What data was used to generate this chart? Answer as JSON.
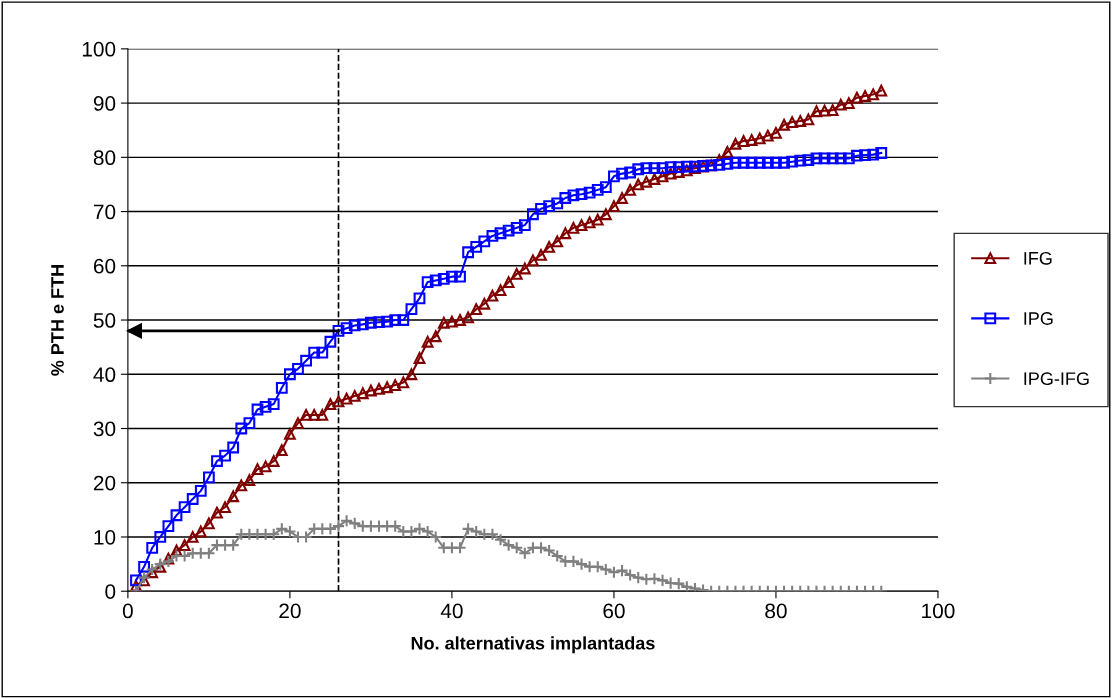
{
  "chart_data": {
    "type": "line",
    "xlabel": "No. alternativas implantadas",
    "ylabel": "% PTH e FTH",
    "x": [
      1,
      2,
      3,
      4,
      5,
      6,
      7,
      8,
      9,
      10,
      11,
      12,
      13,
      14,
      15,
      16,
      17,
      18,
      19,
      20,
      21,
      22,
      23,
      24,
      25,
      26,
      27,
      28,
      29,
      30,
      31,
      32,
      33,
      34,
      35,
      36,
      37,
      38,
      39,
      40,
      41,
      42,
      43,
      44,
      45,
      46,
      47,
      48,
      49,
      50,
      51,
      52,
      53,
      54,
      55,
      56,
      57,
      58,
      59,
      60,
      61,
      62,
      63,
      64,
      65,
      66,
      67,
      68,
      69,
      70,
      71,
      72,
      73,
      74,
      75,
      76,
      77,
      78,
      79,
      80,
      81,
      82,
      83,
      84,
      85,
      86,
      87,
      88,
      89,
      90,
      91,
      92,
      93
    ],
    "series": [
      {
        "name": "IFG",
        "color": "#800000",
        "marker": "triangle",
        "values": [
          1,
          2,
          3.5,
          4.5,
          6,
          7.5,
          8.5,
          10,
          11,
          12.5,
          14.5,
          15.5,
          17.5,
          19.5,
          20.5,
          22.5,
          23,
          24,
          26,
          29,
          31,
          32.5,
          32.5,
          32.5,
          34.5,
          35,
          35.5,
          36,
          36.5,
          37,
          37.3,
          37.6,
          38,
          38.5,
          40,
          43,
          46,
          47,
          49.5,
          49.7,
          50,
          50.5,
          52,
          53,
          54.5,
          55.5,
          57,
          58.5,
          59.5,
          61,
          62,
          63.5,
          64.5,
          66,
          67,
          67.5,
          68,
          68.5,
          69.5,
          71,
          72.5,
          74,
          75,
          75.5,
          76,
          76.5,
          77,
          77.3,
          77.6,
          78,
          78.3,
          78.5,
          79.5,
          81,
          82.5,
          83,
          83.2,
          83.5,
          84,
          84.5,
          86,
          86.5,
          86.7,
          87,
          88.5,
          88.6,
          88.7,
          89.7,
          90,
          91,
          91.3,
          91.6,
          92.3
        ]
      },
      {
        "name": "IPG",
        "color": "#0000ff",
        "marker": "square",
        "values": [
          2,
          4.5,
          8,
          10,
          12,
          14,
          15.5,
          17,
          18.5,
          21,
          24,
          25,
          26.5,
          30,
          31,
          33.5,
          34,
          34.5,
          37.5,
          40,
          41,
          42.5,
          44,
          44,
          46,
          48,
          48.5,
          49,
          49.2,
          49.5,
          49.6,
          49.7,
          50,
          50,
          52,
          54,
          57,
          57.3,
          57.6,
          58,
          58,
          62.5,
          63.5,
          64.5,
          65.5,
          66,
          66.5,
          67,
          67.5,
          69.5,
          70.5,
          71,
          71.5,
          72.5,
          73,
          73.2,
          73.5,
          74,
          74.5,
          76.5,
          77,
          77.2,
          77.8,
          78,
          78,
          78,
          78.2,
          78.2,
          78.3,
          78.3,
          78.4,
          78.5,
          78.6,
          78.8,
          79,
          79,
          79,
          79,
          79,
          79,
          79,
          79.2,
          79.4,
          79.5,
          79.8,
          79.8,
          79.8,
          79.8,
          79.8,
          80.3,
          80.4,
          80.5,
          80.8
        ]
      },
      {
        "name": "IPG-IFG",
        "color": "#808080",
        "marker": "cross",
        "values": [
          0,
          2.5,
          4,
          5,
          5.5,
          6.5,
          6.5,
          7,
          7,
          7,
          8.5,
          8.5,
          8.5,
          10.5,
          10.5,
          10.5,
          10.5,
          10.5,
          11.5,
          11,
          10,
          10,
          11.5,
          11.5,
          11.5,
          12,
          13,
          12.5,
          12,
          12,
          12,
          12,
          12,
          11,
          11,
          11.5,
          11,
          10,
          8,
          8,
          8,
          11.5,
          11,
          10.5,
          10.5,
          9.5,
          8.5,
          8,
          7,
          8,
          8,
          7.5,
          6.5,
          5.5,
          5.5,
          5,
          4.5,
          4.5,
          4,
          3.5,
          3.8,
          3,
          2.5,
          2.2,
          2.3,
          2,
          1.5,
          1.4,
          0.8,
          0.5,
          0.2,
          0,
          0,
          0,
          0,
          0,
          0,
          0,
          0,
          0,
          0,
          0,
          0,
          0,
          0,
          0,
          0,
          0,
          0,
          0,
          0,
          0,
          0
        ]
      }
    ],
    "xlim": [
      0,
      100
    ],
    "xticks": [
      0,
      20,
      40,
      60,
      80,
      100
    ],
    "ylim": [
      0,
      100
    ],
    "yticks": [
      0,
      10,
      20,
      30,
      40,
      50,
      60,
      70,
      80,
      90,
      100
    ],
    "grid": "y",
    "legend": "right",
    "line_style": "solid",
    "ref_lines": [
      {
        "axis": "x",
        "value": 26,
        "line_style": "dashed",
        "color": "#000000"
      },
      {
        "axis": "y",
        "value": 48,
        "line_style": "solid",
        "color": "#000000"
      }
    ]
  }
}
